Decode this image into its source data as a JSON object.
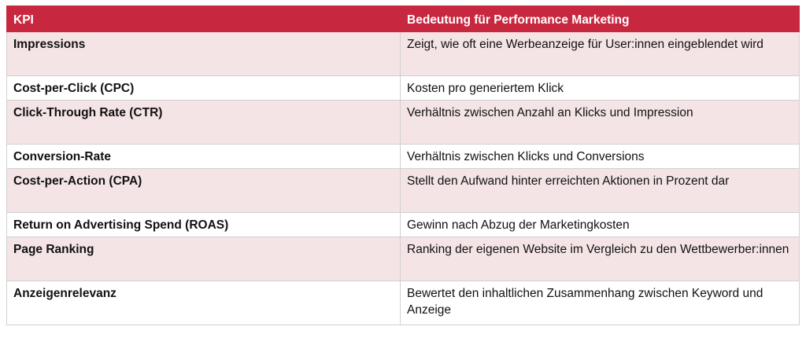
{
  "table": {
    "headers": [
      "KPI",
      "Bedeutung für Performance Marketing"
    ],
    "rows": [
      {
        "kpi": "Impressions",
        "meaning": "Zeigt, wie oft eine Werbeanzeige für User:innen eingeblendet wird"
      },
      {
        "kpi": "Cost-per-Click (CPC)",
        "meaning": "Kosten pro generiertem Klick"
      },
      {
        "kpi": "Click-Through Rate (CTR)",
        "meaning": "Verhältnis zwischen Anzahl an Klicks und Impression"
      },
      {
        "kpi": "Conversion-Rate",
        "meaning": "Verhältnis zwischen Klicks und Conversions"
      },
      {
        "kpi": "Cost-per-Action (CPA)",
        "meaning": "Stellt den Aufwand hinter erreichten Aktionen in Prozent dar"
      },
      {
        "kpi": "Return on Advertising Spend (ROAS)",
        "meaning": "Gewinn nach Abzug der Marketingkosten"
      },
      {
        "kpi": "Page Ranking",
        "meaning": "Ranking der eigenen Website im Vergleich zu den Wettbewerber:innen"
      },
      {
        "kpi": "Anzeigenrelevanz",
        "meaning": "Bewertet den inhaltlichen Zusammenhang zwischen Keyword und Anzeige"
      }
    ]
  },
  "colors": {
    "header_background": "#c8283f",
    "header_text": "#ffffff",
    "shaded_row": "#f4e4e6",
    "plain_row": "#ffffff"
  }
}
